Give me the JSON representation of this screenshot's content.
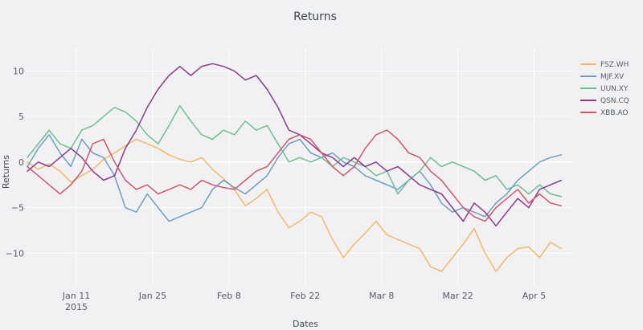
{
  "chart_data": {
    "type": "line",
    "title": "Returns",
    "xlabel": "Dates",
    "ylabel": "Returns",
    "ylim": [
      -13.5,
      12.5
    ],
    "xlim": [
      "2015-01-02",
      "2015-04-12"
    ],
    "x_ticks": [
      {
        "date": "2015-01-11",
        "label": "Jan 11",
        "sublabel": "2015"
      },
      {
        "date": "2015-01-25",
        "label": "Jan 25",
        "sublabel": ""
      },
      {
        "date": "2015-02-08",
        "label": "Feb 8",
        "sublabel": ""
      },
      {
        "date": "2015-02-22",
        "label": "Feb 22",
        "sublabel": ""
      },
      {
        "date": "2015-03-08",
        "label": "Mar 8",
        "sublabel": ""
      },
      {
        "date": "2015-03-22",
        "label": "Mar 22",
        "sublabel": ""
      },
      {
        "date": "2015-04-05",
        "label": "Apr 5",
        "sublabel": ""
      }
    ],
    "y_ticks": [
      10,
      5,
      0,
      -5,
      -10
    ],
    "y_tick_labels": [
      "10",
      "5",
      "0",
      "−5",
      "−10"
    ],
    "grid": true,
    "legend_position": "right",
    "series": [
      {
        "name": "FSZ.WH",
        "color": "#f4b76a",
        "points": [
          [
            "2015-01-02",
            0.0
          ],
          [
            "2015-01-04",
            -0.8
          ],
          [
            "2015-01-06",
            -0.2
          ],
          [
            "2015-01-08",
            -1.0
          ],
          [
            "2015-01-10",
            -2.2
          ],
          [
            "2015-01-12",
            -1.5
          ],
          [
            "2015-01-14",
            -0.8
          ],
          [
            "2015-01-16",
            0.3
          ],
          [
            "2015-01-18",
            1.0
          ],
          [
            "2015-01-20",
            1.8
          ],
          [
            "2015-01-22",
            2.5
          ],
          [
            "2015-01-24",
            2.0
          ],
          [
            "2015-01-26",
            1.5
          ],
          [
            "2015-01-28",
            0.8
          ],
          [
            "2015-01-30",
            0.3
          ],
          [
            "2015-02-01",
            0.0
          ],
          [
            "2015-02-03",
            0.5
          ],
          [
            "2015-02-05",
            -0.8
          ],
          [
            "2015-02-07",
            -1.8
          ],
          [
            "2015-02-09",
            -3.0
          ],
          [
            "2015-02-11",
            -4.8
          ],
          [
            "2015-02-13",
            -4.0
          ],
          [
            "2015-02-15",
            -3.0
          ],
          [
            "2015-02-17",
            -5.5
          ],
          [
            "2015-02-19",
            -7.2
          ],
          [
            "2015-02-21",
            -6.5
          ],
          [
            "2015-02-23",
            -5.5
          ],
          [
            "2015-02-25",
            -6.0
          ],
          [
            "2015-02-27",
            -8.5
          ],
          [
            "2015-03-01",
            -10.5
          ],
          [
            "2015-03-03",
            -9.0
          ],
          [
            "2015-03-05",
            -7.8
          ],
          [
            "2015-03-07",
            -6.5
          ],
          [
            "2015-03-09",
            -8.0
          ],
          [
            "2015-03-11",
            -8.5
          ],
          [
            "2015-03-13",
            -9.0
          ],
          [
            "2015-03-15",
            -9.5
          ],
          [
            "2015-03-17",
            -11.5
          ],
          [
            "2015-03-19",
            -12.0
          ],
          [
            "2015-03-21",
            -10.5
          ],
          [
            "2015-03-23",
            -9.0
          ],
          [
            "2015-03-25",
            -7.3
          ],
          [
            "2015-03-27",
            -10.0
          ],
          [
            "2015-03-29",
            -12.0
          ],
          [
            "2015-03-31",
            -10.5
          ],
          [
            "2015-04-02",
            -9.5
          ],
          [
            "2015-04-04",
            -9.3
          ],
          [
            "2015-04-06",
            -10.5
          ],
          [
            "2015-04-08",
            -8.8
          ],
          [
            "2015-04-10",
            -9.5
          ]
        ]
      },
      {
        "name": "MJF.XV",
        "color": "#6d9dc5",
        "points": [
          [
            "2015-01-02",
            -0.5
          ],
          [
            "2015-01-04",
            1.5
          ],
          [
            "2015-01-06",
            3.0
          ],
          [
            "2015-01-08",
            1.0
          ],
          [
            "2015-01-10",
            -0.5
          ],
          [
            "2015-01-12",
            2.5
          ],
          [
            "2015-01-14",
            1.0
          ],
          [
            "2015-01-16",
            0.5
          ],
          [
            "2015-01-18",
            -1.5
          ],
          [
            "2015-01-20",
            -5.0
          ],
          [
            "2015-01-22",
            -5.5
          ],
          [
            "2015-01-24",
            -3.5
          ],
          [
            "2015-01-26",
            -5.0
          ],
          [
            "2015-01-28",
            -6.5
          ],
          [
            "2015-01-30",
            -6.0
          ],
          [
            "2015-02-01",
            -5.5
          ],
          [
            "2015-02-03",
            -5.0
          ],
          [
            "2015-02-05",
            -3.0
          ],
          [
            "2015-02-07",
            -2.0
          ],
          [
            "2015-02-09",
            -2.8
          ],
          [
            "2015-02-11",
            -3.5
          ],
          [
            "2015-02-13",
            -2.5
          ],
          [
            "2015-02-15",
            -1.5
          ],
          [
            "2015-02-17",
            0.5
          ],
          [
            "2015-02-19",
            2.0
          ],
          [
            "2015-02-21",
            2.5
          ],
          [
            "2015-02-23",
            1.0
          ],
          [
            "2015-02-25",
            0.5
          ],
          [
            "2015-02-27",
            1.0
          ],
          [
            "2015-03-01",
            0.0
          ],
          [
            "2015-03-03",
            -0.5
          ],
          [
            "2015-03-05",
            -1.5
          ],
          [
            "2015-03-07",
            -2.0
          ],
          [
            "2015-03-09",
            -2.5
          ],
          [
            "2015-03-11",
            -3.0
          ],
          [
            "2015-03-13",
            -2.0
          ],
          [
            "2015-03-15",
            -1.0
          ],
          [
            "2015-03-17",
            -2.5
          ],
          [
            "2015-03-19",
            -4.5
          ],
          [
            "2015-03-21",
            -5.5
          ],
          [
            "2015-03-23",
            -5.0
          ],
          [
            "2015-03-25",
            -5.5
          ],
          [
            "2015-03-27",
            -6.0
          ],
          [
            "2015-03-29",
            -4.5
          ],
          [
            "2015-03-31",
            -3.5
          ],
          [
            "2015-04-02",
            -2.0
          ],
          [
            "2015-04-04",
            -1.0
          ],
          [
            "2015-04-06",
            0.0
          ],
          [
            "2015-04-08",
            0.5
          ],
          [
            "2015-04-10",
            0.8
          ]
        ]
      },
      {
        "name": "UUN.XY",
        "color": "#6dbf90",
        "points": [
          [
            "2015-01-02",
            0.5
          ],
          [
            "2015-01-04",
            2.0
          ],
          [
            "2015-01-06",
            3.5
          ],
          [
            "2015-01-08",
            2.0
          ],
          [
            "2015-01-10",
            1.5
          ],
          [
            "2015-01-12",
            3.5
          ],
          [
            "2015-01-14",
            4.0
          ],
          [
            "2015-01-16",
            5.0
          ],
          [
            "2015-01-18",
            6.0
          ],
          [
            "2015-01-20",
            5.5
          ],
          [
            "2015-01-22",
            4.5
          ],
          [
            "2015-01-24",
            3.0
          ],
          [
            "2015-01-26",
            2.0
          ],
          [
            "2015-01-28",
            4.0
          ],
          [
            "2015-01-30",
            6.2
          ],
          [
            "2015-02-01",
            4.5
          ],
          [
            "2015-02-03",
            3.0
          ],
          [
            "2015-02-05",
            2.5
          ],
          [
            "2015-02-07",
            3.5
          ],
          [
            "2015-02-09",
            3.0
          ],
          [
            "2015-02-11",
            4.5
          ],
          [
            "2015-02-13",
            3.5
          ],
          [
            "2015-02-15",
            4.0
          ],
          [
            "2015-02-17",
            2.0
          ],
          [
            "2015-02-19",
            0.0
          ],
          [
            "2015-02-21",
            0.5
          ],
          [
            "2015-02-23",
            0.0
          ],
          [
            "2015-02-25",
            0.5
          ],
          [
            "2015-02-27",
            -0.5
          ],
          [
            "2015-03-01",
            0.5
          ],
          [
            "2015-03-03",
            0.0
          ],
          [
            "2015-03-05",
            -0.5
          ],
          [
            "2015-03-07",
            -1.5
          ],
          [
            "2015-03-09",
            -1.0
          ],
          [
            "2015-03-11",
            -3.5
          ],
          [
            "2015-03-13",
            -2.0
          ],
          [
            "2015-03-15",
            -1.0
          ],
          [
            "2015-03-17",
            0.5
          ],
          [
            "2015-03-19",
            -0.5
          ],
          [
            "2015-03-21",
            0.0
          ],
          [
            "2015-03-23",
            -0.5
          ],
          [
            "2015-03-25",
            -1.0
          ],
          [
            "2015-03-27",
            -2.0
          ],
          [
            "2015-03-29",
            -1.5
          ],
          [
            "2015-03-31",
            -3.0
          ],
          [
            "2015-04-02",
            -2.5
          ],
          [
            "2015-04-04",
            -3.5
          ],
          [
            "2015-04-06",
            -2.5
          ],
          [
            "2015-04-08",
            -3.5
          ],
          [
            "2015-04-10",
            -3.8
          ]
        ]
      },
      {
        "name": "QSN.CQ",
        "color": "#8c3a8e",
        "points": [
          [
            "2015-01-02",
            -1.0
          ],
          [
            "2015-01-04",
            0.0
          ],
          [
            "2015-01-06",
            -0.5
          ],
          [
            "2015-01-08",
            0.5
          ],
          [
            "2015-01-10",
            1.5
          ],
          [
            "2015-01-12",
            0.5
          ],
          [
            "2015-01-14",
            -1.0
          ],
          [
            "2015-01-16",
            -2.0
          ],
          [
            "2015-01-18",
            -1.5
          ],
          [
            "2015-01-20",
            1.5
          ],
          [
            "2015-01-22",
            3.5
          ],
          [
            "2015-01-24",
            6.0
          ],
          [
            "2015-01-26",
            8.0
          ],
          [
            "2015-01-28",
            9.5
          ],
          [
            "2015-01-30",
            10.5
          ],
          [
            "2015-02-01",
            9.5
          ],
          [
            "2015-02-03",
            10.5
          ],
          [
            "2015-02-05",
            10.8
          ],
          [
            "2015-02-07",
            10.5
          ],
          [
            "2015-02-09",
            10.0
          ],
          [
            "2015-02-11",
            9.0
          ],
          [
            "2015-02-13",
            9.5
          ],
          [
            "2015-02-15",
            8.0
          ],
          [
            "2015-02-17",
            6.0
          ],
          [
            "2015-02-19",
            3.5
          ],
          [
            "2015-02-21",
            3.0
          ],
          [
            "2015-02-23",
            2.0
          ],
          [
            "2015-02-25",
            1.0
          ],
          [
            "2015-02-27",
            0.5
          ],
          [
            "2015-03-01",
            -0.5
          ],
          [
            "2015-03-03",
            0.5
          ],
          [
            "2015-03-05",
            -0.5
          ],
          [
            "2015-03-07",
            0.0
          ],
          [
            "2015-03-09",
            -1.0
          ],
          [
            "2015-03-11",
            -0.5
          ],
          [
            "2015-03-13",
            -1.5
          ],
          [
            "2015-03-15",
            -2.5
          ],
          [
            "2015-03-17",
            -3.0
          ],
          [
            "2015-03-19",
            -3.5
          ],
          [
            "2015-03-21",
            -5.0
          ],
          [
            "2015-03-23",
            -6.5
          ],
          [
            "2015-03-25",
            -4.5
          ],
          [
            "2015-03-27",
            -5.5
          ],
          [
            "2015-03-29",
            -7.0
          ],
          [
            "2015-03-31",
            -5.5
          ],
          [
            "2015-04-02",
            -4.0
          ],
          [
            "2015-04-04",
            -5.0
          ],
          [
            "2015-04-06",
            -3.0
          ],
          [
            "2015-04-08",
            -2.5
          ],
          [
            "2015-04-10",
            -2.0
          ]
        ]
      },
      {
        "name": "XBB.AO",
        "color": "#d0576b",
        "points": [
          [
            "2015-01-02",
            -0.5
          ],
          [
            "2015-01-04",
            -1.5
          ],
          [
            "2015-01-06",
            -2.5
          ],
          [
            "2015-01-08",
            -3.5
          ],
          [
            "2015-01-10",
            -2.5
          ],
          [
            "2015-01-12",
            -1.0
          ],
          [
            "2015-01-14",
            2.0
          ],
          [
            "2015-01-16",
            2.5
          ],
          [
            "2015-01-18",
            0.0
          ],
          [
            "2015-01-20",
            -2.0
          ],
          [
            "2015-01-22",
            -3.0
          ],
          [
            "2015-01-24",
            -2.5
          ],
          [
            "2015-01-26",
            -3.5
          ],
          [
            "2015-01-28",
            -3.0
          ],
          [
            "2015-01-30",
            -2.5
          ],
          [
            "2015-02-01",
            -3.0
          ],
          [
            "2015-02-03",
            -2.0
          ],
          [
            "2015-02-05",
            -2.5
          ],
          [
            "2015-02-07",
            -2.8
          ],
          [
            "2015-02-09",
            -3.0
          ],
          [
            "2015-02-11",
            -2.0
          ],
          [
            "2015-02-13",
            -1.0
          ],
          [
            "2015-02-15",
            -0.5
          ],
          [
            "2015-02-17",
            1.0
          ],
          [
            "2015-02-19",
            2.5
          ],
          [
            "2015-02-21",
            3.0
          ],
          [
            "2015-02-23",
            2.5
          ],
          [
            "2015-02-25",
            1.0
          ],
          [
            "2015-02-27",
            -0.5
          ],
          [
            "2015-03-01",
            -1.5
          ],
          [
            "2015-03-03",
            -0.5
          ],
          [
            "2015-03-05",
            1.5
          ],
          [
            "2015-03-07",
            3.0
          ],
          [
            "2015-03-09",
            3.5
          ],
          [
            "2015-03-11",
            2.5
          ],
          [
            "2015-03-13",
            1.0
          ],
          [
            "2015-03-15",
            0.5
          ],
          [
            "2015-03-17",
            -1.0
          ],
          [
            "2015-03-19",
            -2.0
          ],
          [
            "2015-03-21",
            -3.5
          ],
          [
            "2015-03-23",
            -5.0
          ],
          [
            "2015-03-25",
            -6.0
          ],
          [
            "2015-03-27",
            -6.5
          ],
          [
            "2015-03-29",
            -5.0
          ],
          [
            "2015-03-31",
            -4.0
          ],
          [
            "2015-04-02",
            -3.0
          ],
          [
            "2015-04-04",
            -4.5
          ],
          [
            "2015-04-06",
            -3.5
          ],
          [
            "2015-04-08",
            -4.5
          ],
          [
            "2015-04-10",
            -4.8
          ]
        ]
      }
    ]
  }
}
